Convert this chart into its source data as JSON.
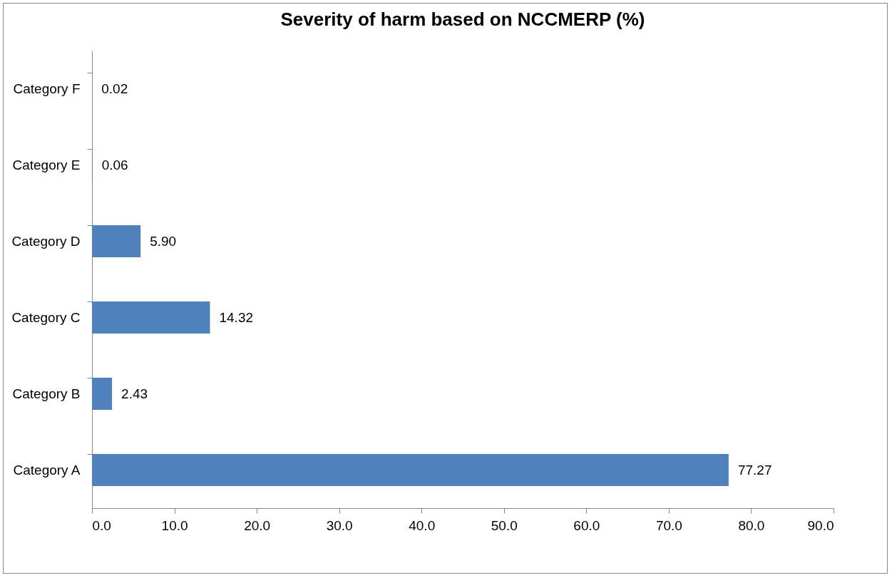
{
  "chart_data": {
    "type": "bar",
    "orientation": "horizontal",
    "title": "Severity of harm based on NCCMERP  (%)",
    "categories": [
      "Category F",
      "Category E",
      "Category D",
      "Category C",
      "Category B",
      "Category A"
    ],
    "values": [
      0.02,
      0.06,
      5.9,
      14.32,
      2.43,
      77.27
    ],
    "value_labels": [
      "0.02",
      "0.06",
      "5.90",
      "14.32",
      "2.43",
      "77.27"
    ],
    "color": "#4f81bd",
    "xlim": [
      0,
      90
    ],
    "xticks": [
      {
        "value": 0,
        "label": "0.0"
      },
      {
        "value": 10,
        "label": "10.0"
      },
      {
        "value": 20,
        "label": "20.0"
      },
      {
        "value": 30,
        "label": "30.0"
      },
      {
        "value": 40,
        "label": "40.0"
      },
      {
        "value": 50,
        "label": "50.0"
      },
      {
        "value": 60,
        "label": "60.0"
      },
      {
        "value": 70,
        "label": "70.0"
      },
      {
        "value": 80,
        "label": "80.0"
      },
      {
        "value": 90,
        "label": "90.0"
      }
    ],
    "grid": false
  }
}
